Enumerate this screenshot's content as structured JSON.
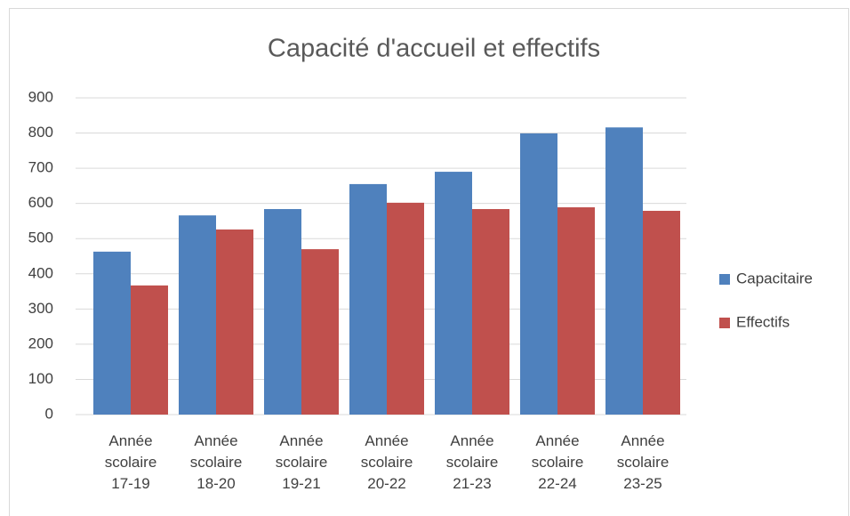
{
  "chart_data": {
    "type": "bar",
    "title": "Capacité d'accueil et effectifs",
    "categories": [
      "Année scolaire 17-19",
      "Année scolaire 18-20",
      "Année scolaire 19-21",
      "Année scolaire 20-22",
      "Année scolaire 21-23",
      "Année scolaire 22-24",
      "Année scolaire 23-25"
    ],
    "series": [
      {
        "name": "Capacitaire",
        "color": "#4f81bd",
        "values": [
          463,
          566,
          584,
          655,
          690,
          799,
          816
        ]
      },
      {
        "name": "Effectifs",
        "color": "#c0504d",
        "values": [
          367,
          526,
          470,
          602,
          584,
          589,
          579
        ]
      }
    ],
    "ylim": [
      0,
      900
    ],
    "yticks": [
      0,
      100,
      200,
      300,
      400,
      500,
      600,
      700,
      800,
      900
    ],
    "grid": true,
    "legend": "right"
  }
}
